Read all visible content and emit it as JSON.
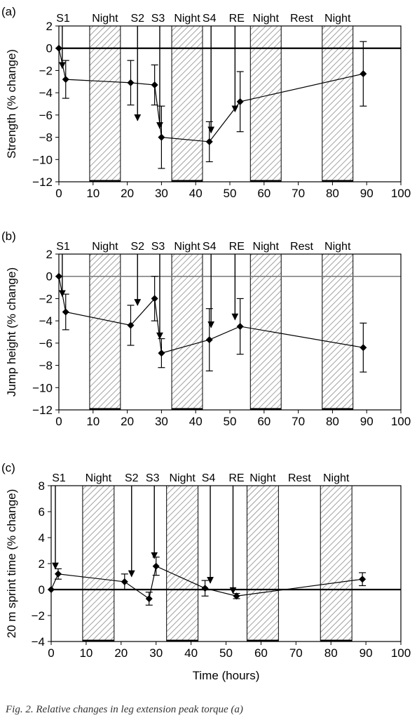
{
  "chart_data": [
    {
      "type": "scatter",
      "panel": "(a)",
      "ylabel": "Strength (% change)",
      "xlabel": "",
      "xlim": [
        0,
        100
      ],
      "ylim": [
        -12,
        2
      ],
      "xticks": [
        "0",
        "10",
        "20",
        "30",
        "40",
        "50",
        "60",
        "70",
        "80",
        "90",
        "100"
      ],
      "yticks": [
        "2",
        "0",
        "-2",
        "-4",
        "-6",
        "-8",
        "-10",
        "-12"
      ],
      "series": [
        {
          "x": [
            0,
            2,
            21,
            28,
            30,
            44,
            53,
            89
          ],
          "y": [
            0,
            -2.8,
            -3.1,
            -3.3,
            -8.0,
            -8.4,
            -4.8,
            -2.3
          ],
          "err": [
            0,
            1.7,
            2.0,
            1.8,
            2.8,
            1.8,
            2.7,
            2.9
          ]
        }
      ],
      "zero_line": 0,
      "shaded_periods": [
        {
          "label": "Night",
          "start": 9,
          "end": 18
        },
        {
          "label": "Night",
          "start": 33,
          "end": 42
        },
        {
          "label": "Night",
          "start": 56,
          "end": 65
        },
        {
          "label": "Night",
          "start": 77,
          "end": 86
        }
      ],
      "event_labels": [
        {
          "label": "S1",
          "x": 0
        },
        {
          "label": "S2",
          "x": 23
        },
        {
          "label": "S3",
          "x": 29
        },
        {
          "label": "S4",
          "x": 44
        },
        {
          "label": "RE",
          "x": 52
        },
        {
          "label": "Rest",
          "x": 71
        }
      ],
      "arrows": [
        {
          "x": 1,
          "y_end": -1.8
        },
        {
          "x": 23,
          "y_end": -6.5
        },
        {
          "x": 29.5,
          "y_end": -7.2
        },
        {
          "x": 44.5,
          "y_end": -7.6
        },
        {
          "x": 51.5,
          "y_end": -5.7
        }
      ]
    },
    {
      "type": "scatter",
      "panel": "(b)",
      "ylabel": "Jump height (% change)",
      "xlabel": "",
      "xlim": [
        0,
        100
      ],
      "ylim": [
        -12,
        2
      ],
      "xticks": [
        "0",
        "10",
        "20",
        "30",
        "40",
        "50",
        "60",
        "70",
        "80",
        "90",
        "100"
      ],
      "yticks": [
        "2",
        "0",
        "-2",
        "-4",
        "-6",
        "-8",
        "-10",
        "-12"
      ],
      "series": [
        {
          "x": [
            0,
            2,
            21,
            28,
            30,
            44,
            53,
            89
          ],
          "y": [
            0,
            -3.2,
            -4.4,
            -2.0,
            -6.9,
            -5.7,
            -4.5,
            -6.4
          ],
          "err": [
            0,
            1.6,
            1.8,
            2.0,
            1.3,
            2.8,
            2.5,
            2.2
          ]
        }
      ],
      "zero_line": 0,
      "shaded_periods": [
        {
          "label": "Night",
          "start": 9,
          "end": 18
        },
        {
          "label": "Night",
          "start": 33,
          "end": 42
        },
        {
          "label": "Night",
          "start": 56,
          "end": 65
        },
        {
          "label": "Night",
          "start": 77,
          "end": 86
        }
      ],
      "event_labels": [
        {
          "label": "S1",
          "x": 0
        },
        {
          "label": "S2",
          "x": 23
        },
        {
          "label": "S3",
          "x": 29
        },
        {
          "label": "S4",
          "x": 44
        },
        {
          "label": "RE",
          "x": 52
        },
        {
          "label": "Rest",
          "x": 71
        }
      ],
      "arrows": [
        {
          "x": 1,
          "y_end": -1.8
        },
        {
          "x": 23,
          "y_end": -2.6
        },
        {
          "x": 29.5,
          "y_end": -5.6
        },
        {
          "x": 44.5,
          "y_end": -4.6
        },
        {
          "x": 51.5,
          "y_end": -3.9
        }
      ]
    },
    {
      "type": "scatter",
      "panel": "(c)",
      "ylabel": "20 m sprint time (% change)",
      "xlabel": "Time (hours)",
      "xlim": [
        0,
        100
      ],
      "ylim": [
        -4,
        8
      ],
      "xticks": [
        "0",
        "10",
        "20",
        "30",
        "40",
        "50",
        "60",
        "70",
        "80",
        "90",
        "100"
      ],
      "yticks": [
        "8",
        "6",
        "4",
        "2",
        "0",
        "-2",
        "-4"
      ],
      "series": [
        {
          "x": [
            0,
            2,
            21,
            28,
            30,
            44,
            53,
            89
          ],
          "y": [
            0,
            1.2,
            0.6,
            -0.7,
            1.8,
            0.1,
            -0.5,
            0.8
          ],
          "err": [
            0,
            0.4,
            0.6,
            0.5,
            0.7,
            0.6,
            0.2,
            0.5
          ]
        }
      ],
      "zero_line": 0,
      "shaded_periods": [
        {
          "label": "Night",
          "start": 9,
          "end": 18
        },
        {
          "label": "Night",
          "start": 33,
          "end": 42
        },
        {
          "label": "Night",
          "start": 56,
          "end": 65
        },
        {
          "label": "Night",
          "start": 77,
          "end": 86
        }
      ],
      "event_labels": [
        {
          "label": "S1",
          "x": 1
        },
        {
          "label": "S2",
          "x": 23
        },
        {
          "label": "S3",
          "x": 29
        },
        {
          "label": "S4",
          "x": 45
        },
        {
          "label": "RE",
          "x": 53
        },
        {
          "label": "Rest",
          "x": 71
        }
      ],
      "arrows": [
        {
          "x": 1.2,
          "y_end": 1.6
        },
        {
          "x": 23,
          "y_end": 1.0
        },
        {
          "x": 29.5,
          "y_end": 2.4
        },
        {
          "x": 45.5,
          "y_end": 0.5
        },
        {
          "x": 52,
          "y_end": -0.3
        }
      ]
    }
  ],
  "caption": "Fig. 2. Relative changes in leg extension peak torque (a)"
}
